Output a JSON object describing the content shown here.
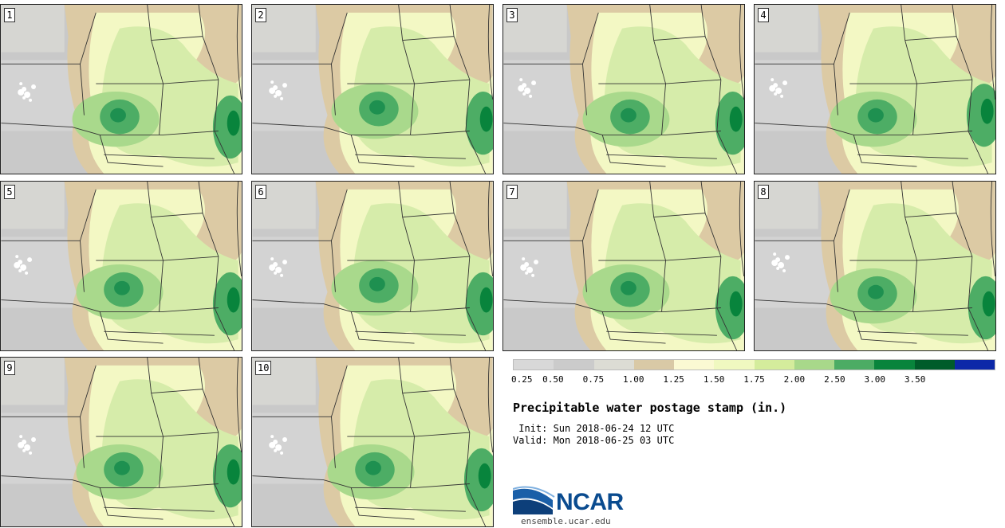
{
  "panels": [
    {
      "label": "1",
      "blob": [
        [
          150,
          150
        ],
        [
          35,
          40
        ],
        [
          290,
          155
        ]
      ]
    },
    {
      "label": "2",
      "blob": [
        [
          160,
          140
        ],
        [
          35,
          38
        ],
        [
          292,
          150
        ]
      ]
    },
    {
      "label": "3",
      "blob": [
        [
          160,
          150
        ],
        [
          32,
          35
        ],
        [
          290,
          150
        ]
      ]
    },
    {
      "label": "4",
      "blob": [
        [
          155,
          150
        ],
        [
          32,
          35
        ],
        [
          290,
          140
        ]
      ]
    },
    {
      "label": "5",
      "blob": [
        [
          155,
          145
        ],
        [
          30,
          35
        ],
        [
          290,
          155
        ]
      ]
    },
    {
      "label": "6",
      "blob": [
        [
          160,
          140
        ],
        [
          35,
          38
        ],
        [
          292,
          155
        ]
      ]
    },
    {
      "label": "7",
      "blob": [
        [
          160,
          145
        ],
        [
          35,
          38
        ],
        [
          290,
          160
        ]
      ]
    },
    {
      "label": "8",
      "blob": [
        [
          155,
          150
        ],
        [
          35,
          32
        ],
        [
          292,
          160
        ]
      ]
    },
    {
      "label": "9",
      "blob": [
        [
          155,
          150
        ],
        [
          35,
          40
        ],
        [
          290,
          150
        ]
      ]
    },
    {
      "label": "10",
      "blob": [
        [
          155,
          150
        ],
        [
          35,
          40
        ],
        [
          290,
          155
        ]
      ]
    }
  ],
  "legend": {
    "ticks": [
      "0.25",
      "0.50",
      "0.75",
      "1.00",
      "1.25",
      "1.50",
      "1.75",
      "2.00",
      "2.50",
      "3.00",
      "3.50"
    ],
    "colors": [
      "#d8d8d8",
      "#cbcbcb",
      "#dcdcd4",
      "#d9c9a6",
      "#fbf9d3",
      "#f0f8c0",
      "#d4ec9c",
      "#a8d88a",
      "#4cac64",
      "#08843c",
      "#005c2a",
      "#0c28a8"
    ]
  },
  "title": "Precipitable water postage stamp (in.)",
  "init_line": " Init: Sun 2018-06-24 12 UTC",
  "valid_line": "Valid: Mon 2018-06-25 03 UTC",
  "logo_name": "NCAR",
  "url": "ensemble.ucar.edu"
}
